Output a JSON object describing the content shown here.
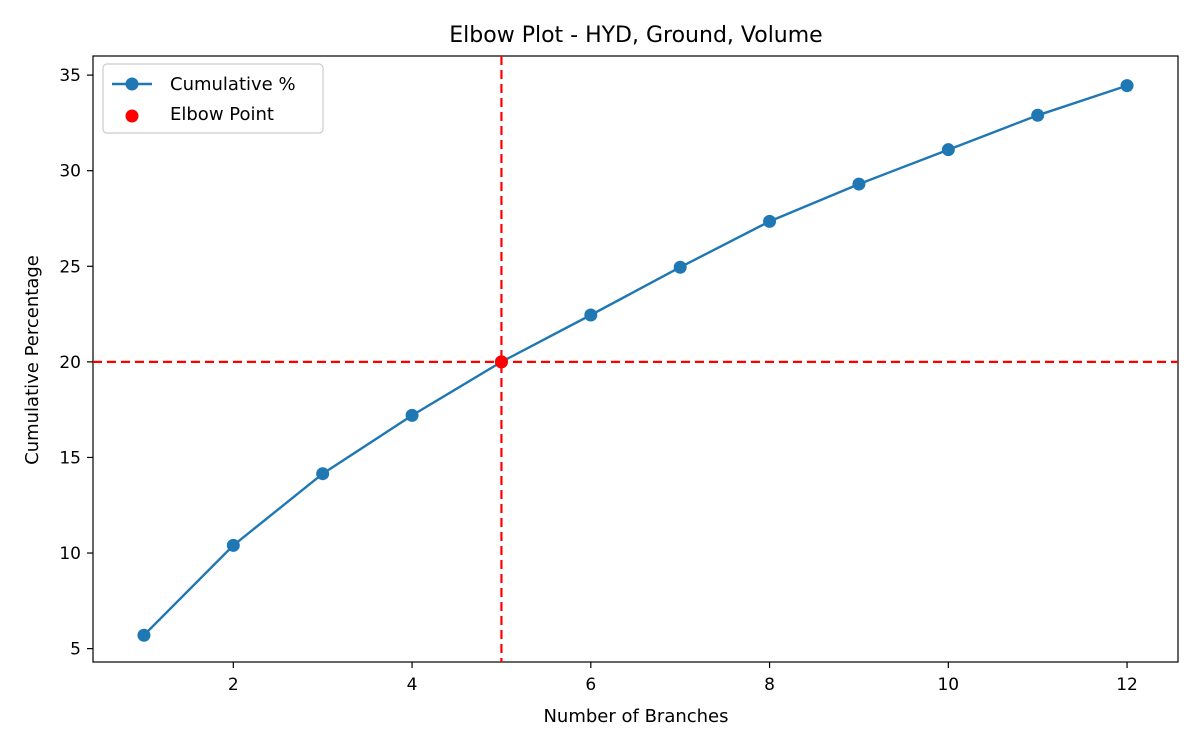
{
  "chart_data": {
    "type": "line",
    "title": "Elbow Plot - HYD, Ground, Volume",
    "xlabel": "Number of Branches",
    "ylabel": "Cumulative Percentage",
    "xlim": [
      0.43,
      12.57
    ],
    "ylim": [
      4.3,
      36.0
    ],
    "xticks": [
      2,
      4,
      6,
      8,
      10,
      12
    ],
    "yticks": [
      5,
      10,
      15,
      20,
      25,
      30,
      35
    ],
    "grid": false,
    "legend_position": "upper left",
    "series": [
      {
        "name": "Cumulative %",
        "color": "#1f77b4",
        "marker": "circle",
        "x": [
          1,
          2,
          3,
          4,
          5,
          6,
          7,
          8,
          9,
          10,
          11,
          12
        ],
        "y": [
          5.7,
          10.4,
          14.15,
          17.2,
          20.0,
          22.45,
          24.95,
          27.35,
          29.3,
          31.1,
          32.9,
          34.45
        ]
      }
    ],
    "elbow_point": {
      "name": "Elbow Point",
      "color": "#ff0000",
      "x": 5,
      "y": 20.0
    },
    "reference_lines": {
      "color": "#ff0000",
      "style": "dashed",
      "vertical_x": 5,
      "horizontal_y": 20
    }
  }
}
